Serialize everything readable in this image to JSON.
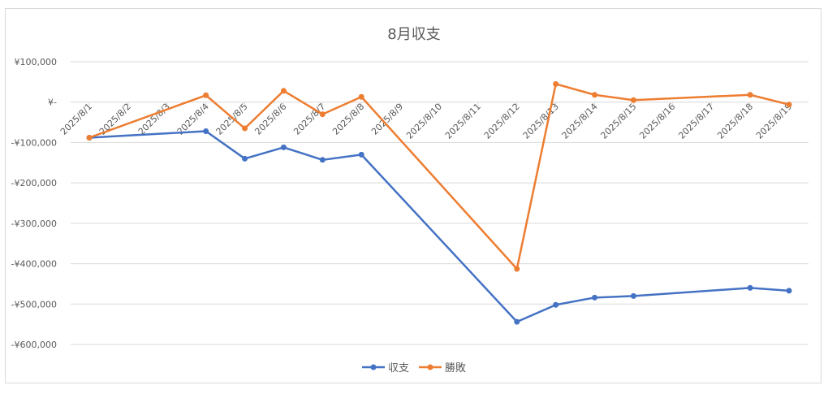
{
  "chart_data": {
    "type": "line",
    "title": "8月収支",
    "categories": [
      "2025/8/1",
      "2025/8/2",
      "2025/8/3",
      "2025/8/4",
      "2025/8/5",
      "2025/8/6",
      "2025/8/7",
      "2025/8/8",
      "2025/8/9",
      "2025/8/10",
      "2025/8/11",
      "2025/8/12",
      "2025/8/13",
      "2025/8/14",
      "2025/8/15",
      "2025/8/16",
      "2025/8/17",
      "2025/8/18",
      "2025/8/19"
    ],
    "y_ticks": [
      {
        "value": 100000,
        "label": "¥100,000"
      },
      {
        "value": 0,
        "label": "¥-"
      },
      {
        "value": -100000,
        "label": "-¥100,000"
      },
      {
        "value": -200000,
        "label": "-¥200,000"
      },
      {
        "value": -300000,
        "label": "-¥300,000"
      },
      {
        "value": -400000,
        "label": "-¥400,000"
      },
      {
        "value": -500000,
        "label": "-¥500,000"
      },
      {
        "value": -600000,
        "label": "-¥600,000"
      }
    ],
    "ylim": [
      -600000,
      100000
    ],
    "grid": true,
    "legend_position": "bottom",
    "series": [
      {
        "name": "収支",
        "color": "#4472C4",
        "points": [
          {
            "x": "2025/8/1",
            "y": -88000
          },
          {
            "x": "2025/8/4",
            "y": -72000
          },
          {
            "x": "2025/8/5",
            "y": -140000
          },
          {
            "x": "2025/8/6",
            "y": -112000
          },
          {
            "x": "2025/8/7",
            "y": -143000
          },
          {
            "x": "2025/8/8",
            "y": -130000
          },
          {
            "x": "2025/8/12",
            "y": -544000
          },
          {
            "x": "2025/8/13",
            "y": -502000
          },
          {
            "x": "2025/8/14",
            "y": -484000
          },
          {
            "x": "2025/8/15",
            "y": -480000
          },
          {
            "x": "2025/8/18",
            "y": -460000
          },
          {
            "x": "2025/8/19",
            "y": -467000
          }
        ]
      },
      {
        "name": "勝敗",
        "color": "#ED7D31",
        "points": [
          {
            "x": "2025/8/1",
            "y": -88000
          },
          {
            "x": "2025/8/4",
            "y": 17000
          },
          {
            "x": "2025/8/5",
            "y": -65000
          },
          {
            "x": "2025/8/6",
            "y": 28000
          },
          {
            "x": "2025/8/7",
            "y": -30000
          },
          {
            "x": "2025/8/8",
            "y": 13000
          },
          {
            "x": "2025/8/12",
            "y": -413000
          },
          {
            "x": "2025/8/13",
            "y": 45000
          },
          {
            "x": "2025/8/14",
            "y": 18000
          },
          {
            "x": "2025/8/15",
            "y": 5000
          },
          {
            "x": "2025/8/18",
            "y": 18000
          },
          {
            "x": "2025/8/19",
            "y": -6000
          }
        ]
      }
    ]
  }
}
